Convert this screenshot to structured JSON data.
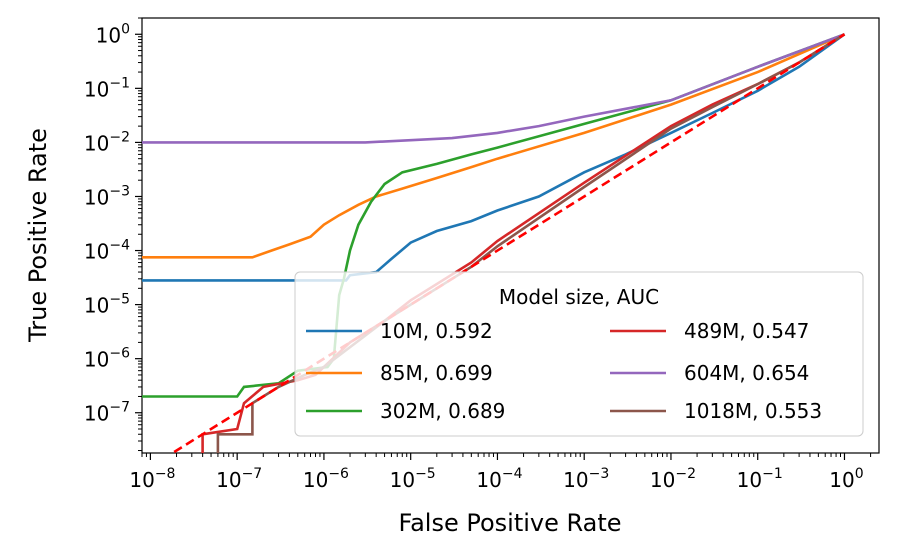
{
  "chart_data": {
    "type": "line",
    "xlabel": "False Positive Rate",
    "ylabel": "True Positive Rate",
    "xscale": "log",
    "yscale": "log",
    "xlim": [
      8e-09,
      2.5
    ],
    "ylim": [
      1.8e-08,
      2.0
    ],
    "x_ticks": [
      {
        "value": 1e-08,
        "base": "10",
        "exp": "−8"
      },
      {
        "value": 1e-07,
        "base": "10",
        "exp": "−7"
      },
      {
        "value": 1e-06,
        "base": "10",
        "exp": "−6"
      },
      {
        "value": 1e-05,
        "base": "10",
        "exp": "−5"
      },
      {
        "value": 0.0001,
        "base": "10",
        "exp": "−4"
      },
      {
        "value": 0.001,
        "base": "10",
        "exp": "−3"
      },
      {
        "value": 0.01,
        "base": "10",
        "exp": "−2"
      },
      {
        "value": 0.1,
        "base": "10",
        "exp": "−1"
      },
      {
        "value": 1,
        "base": "10",
        "exp": "0"
      }
    ],
    "y_ticks": [
      {
        "value": 1e-07,
        "base": "10",
        "exp": "−7"
      },
      {
        "value": 1e-06,
        "base": "10",
        "exp": "−6"
      },
      {
        "value": 1e-05,
        "base": "10",
        "exp": "−5"
      },
      {
        "value": 0.0001,
        "base": "10",
        "exp": "−4"
      },
      {
        "value": 0.001,
        "base": "10",
        "exp": "−3"
      },
      {
        "value": 0.01,
        "base": "10",
        "exp": "−2"
      },
      {
        "value": 0.1,
        "base": "10",
        "exp": "−1"
      },
      {
        "value": 1,
        "base": "10",
        "exp": "0"
      }
    ],
    "legend": {
      "title": "Model size, AUC",
      "placement": "lower right",
      "columns": 2
    },
    "reference_line": {
      "color": "#ff0000",
      "style": "dashed",
      "points": [
        [
          1e-08,
          1e-08
        ],
        [
          1,
          1
        ]
      ]
    },
    "series": [
      {
        "name": "10M, 0.592",
        "color": "#1f77b4",
        "points": [
          [
            8e-09,
            2.8e-05
          ],
          [
            1.8e-06,
            2.8e-05
          ],
          [
            2e-06,
            3.5e-05
          ],
          [
            4e-06,
            4e-05
          ],
          [
            6e-06,
            7e-05
          ],
          [
            1e-05,
            0.00014
          ],
          [
            2e-05,
            0.00023
          ],
          [
            5e-05,
            0.00035
          ],
          [
            0.0001,
            0.00055
          ],
          [
            0.0003,
            0.001
          ],
          [
            0.001,
            0.0028
          ],
          [
            0.003,
            0.006
          ],
          [
            0.01,
            0.015
          ],
          [
            0.03,
            0.035
          ],
          [
            0.1,
            0.09
          ],
          [
            0.3,
            0.25
          ],
          [
            1,
            1
          ]
        ]
      },
      {
        "name": "85M, 0.699",
        "color": "#ff7f0e",
        "points": [
          [
            8e-09,
            7.5e-05
          ],
          [
            1.5e-07,
            7.5e-05
          ],
          [
            2.5e-07,
            0.0001
          ],
          [
            4e-07,
            0.00013
          ],
          [
            7e-07,
            0.00018
          ],
          [
            1e-06,
            0.0003
          ],
          [
            1.5e-06,
            0.00045
          ],
          [
            2.5e-06,
            0.0007
          ],
          [
            4e-06,
            0.001
          ],
          [
            8e-06,
            0.0014
          ],
          [
            2e-05,
            0.0022
          ],
          [
            5e-05,
            0.0035
          ],
          [
            0.0001,
            0.005
          ],
          [
            0.001,
            0.015
          ],
          [
            0.01,
            0.05
          ],
          [
            0.1,
            0.2
          ],
          [
            1,
            1
          ]
        ]
      },
      {
        "name": "302M, 0.689",
        "color": "#2ca02c",
        "points": [
          [
            8e-09,
            2e-07
          ],
          [
            1e-07,
            2e-07
          ],
          [
            1.2e-07,
            3e-07
          ],
          [
            3e-07,
            3.5e-07
          ],
          [
            5e-07,
            6e-07
          ],
          [
            1.1e-06,
            7e-07
          ],
          [
            1.3e-06,
            1e-06
          ],
          [
            1.5e-06,
            1.5e-05
          ],
          [
            1.7e-06,
            3e-05
          ],
          [
            2e-06,
            0.0001
          ],
          [
            2.5e-06,
            0.0003
          ],
          [
            3.5e-06,
            0.0008
          ],
          [
            5e-06,
            0.0017
          ],
          [
            8e-06,
            0.0028
          ],
          [
            2e-05,
            0.004
          ],
          [
            5e-05,
            0.006
          ],
          [
            0.0001,
            0.008
          ],
          [
            0.001,
            0.022
          ],
          [
            0.01,
            0.06
          ],
          [
            0.1,
            0.25
          ],
          [
            1,
            1
          ]
        ]
      },
      {
        "name": "489M, 0.547",
        "color": "#d62728",
        "points": [
          [
            4e-08,
            1.8e-08
          ],
          [
            4e-08,
            4e-08
          ],
          [
            1e-07,
            5e-08
          ],
          [
            1.2e-07,
            1.5e-07
          ],
          [
            2e-07,
            3e-07
          ],
          [
            5e-07,
            4e-07
          ],
          [
            8e-07,
            5e-07
          ],
          [
            2e-06,
            2e-06
          ],
          [
            5e-06,
            5e-06
          ],
          [
            1e-05,
            1.2e-05
          ],
          [
            5e-05,
            6e-05
          ],
          [
            0.0001,
            0.00015
          ],
          [
            0.001,
            0.0018
          ],
          [
            0.01,
            0.02
          ],
          [
            0.03,
            0.05
          ],
          [
            0.1,
            0.12
          ],
          [
            0.3,
            0.3
          ],
          [
            1,
            1
          ]
        ]
      },
      {
        "name": "604M, 0.654",
        "color": "#9467bd",
        "points": [
          [
            8e-09,
            0.01
          ],
          [
            3e-06,
            0.01
          ],
          [
            1e-05,
            0.011
          ],
          [
            3e-05,
            0.012
          ],
          [
            0.0001,
            0.015
          ],
          [
            0.0003,
            0.02
          ],
          [
            0.001,
            0.03
          ],
          [
            0.01,
            0.06
          ],
          [
            0.1,
            0.25
          ],
          [
            1,
            1
          ]
        ]
      },
      {
        "name": "1018M, 0.553",
        "color": "#8c564b",
        "points": [
          [
            6e-08,
            1.8e-08
          ],
          [
            6e-08,
            4e-08
          ],
          [
            1.5e-07,
            4e-08
          ],
          [
            1.5e-07,
            1.5e-07
          ],
          [
            3e-07,
            3e-07
          ],
          [
            6e-07,
            5e-07
          ],
          [
            1e-06,
            7e-07
          ],
          [
            5e-06,
            5e-06
          ],
          [
            1e-05,
            1e-05
          ],
          [
            5e-05,
            5e-05
          ],
          [
            0.0001,
            0.00012
          ],
          [
            0.001,
            0.0015
          ],
          [
            0.01,
            0.018
          ],
          [
            0.03,
            0.045
          ],
          [
            0.1,
            0.12
          ],
          [
            0.3,
            0.3
          ],
          [
            1,
            1
          ]
        ]
      }
    ]
  }
}
